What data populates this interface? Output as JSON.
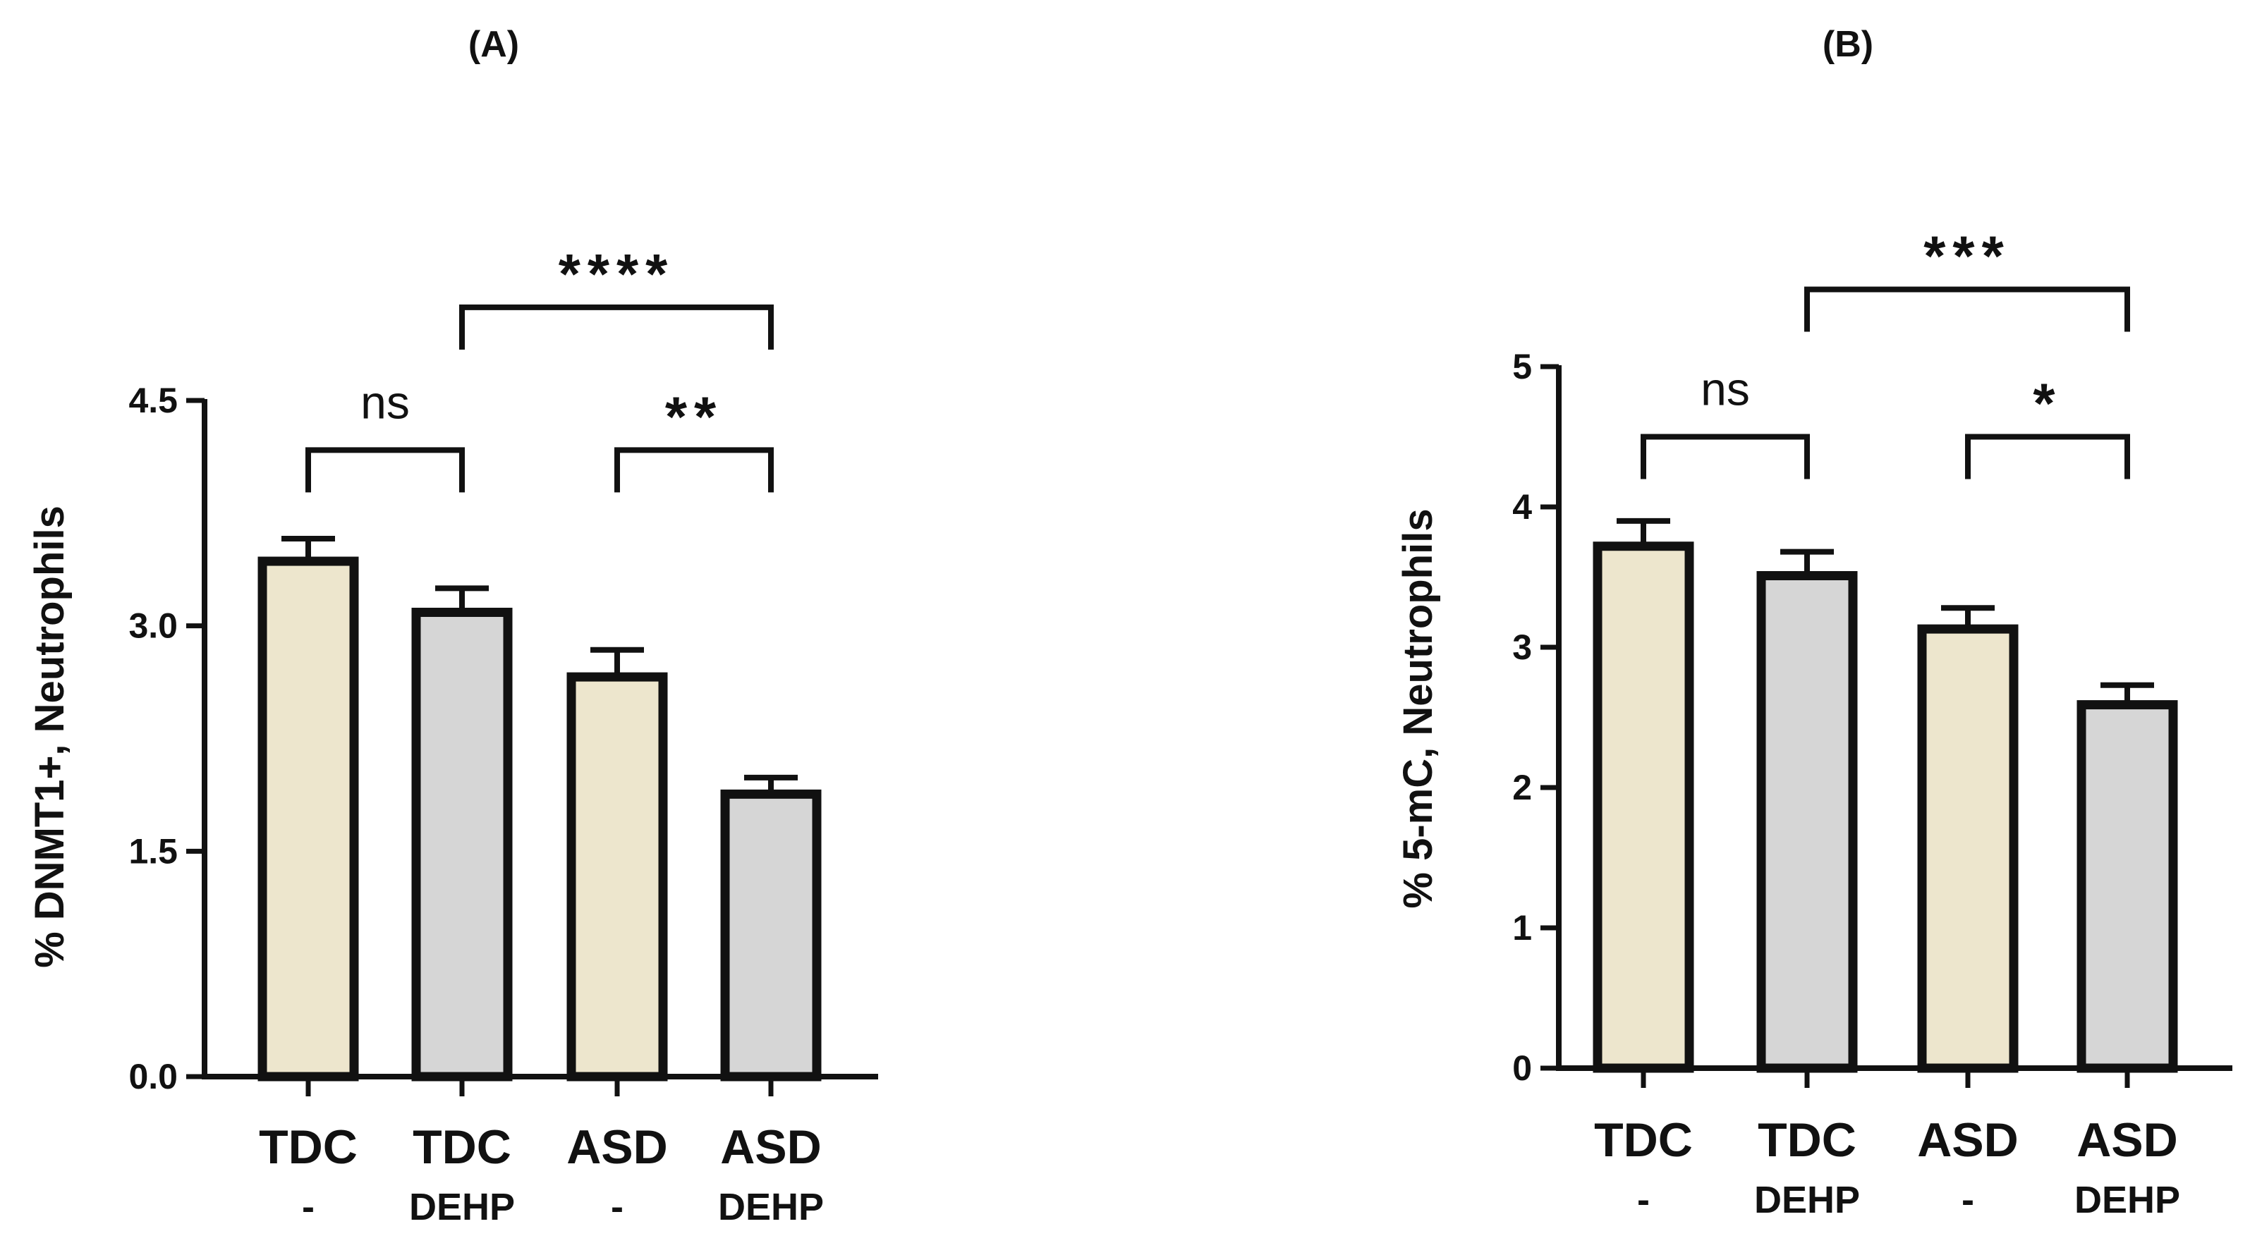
{
  "colors": {
    "tdc": "#ede6cd",
    "asd": "#ede6cd",
    "dehp": "#d6d6d6",
    "line": "#111111"
  },
  "chart_data": [
    {
      "panel": "(A)",
      "type": "bar",
      "categories": [
        {
          "line1": "TDC",
          "line2": "-"
        },
        {
          "line1": "TDC",
          "line2": "DEHP"
        },
        {
          "line1": "ASD",
          "line2": "-"
        },
        {
          "line1": "ASD",
          "line2": "DEHP"
        }
      ],
      "values": [
        3.43,
        3.09,
        2.66,
        1.88
      ],
      "errors": [
        0.15,
        0.16,
        0.18,
        0.11
      ],
      "fills": [
        "tdc",
        "dehp",
        "asd",
        "dehp"
      ],
      "ylabel": "% DNMT1+, Neutrophils",
      "ylim": [
        0,
        4.5
      ],
      "yticks": [
        {
          "value": 0,
          "label": "0.0"
        },
        {
          "value": 1.5,
          "label": "1.5"
        },
        {
          "value": 3.0,
          "label": "3.0"
        },
        {
          "value": 4.5,
          "label": "4.5"
        }
      ],
      "comparisons": [
        {
          "from": 0,
          "to": 1,
          "level": 4.17,
          "label": "ns"
        },
        {
          "from": 2,
          "to": 3,
          "level": 4.17,
          "label": "**"
        },
        {
          "from": 1,
          "to": 3,
          "level": 5.12,
          "label": "****"
        }
      ]
    },
    {
      "panel": "(B)",
      "type": "bar",
      "categories": [
        {
          "line1": "TDC",
          "line2": "-"
        },
        {
          "line1": "TDC",
          "line2": "DEHP"
        },
        {
          "line1": "ASD",
          "line2": "-"
        },
        {
          "line1": "ASD",
          "line2": "DEHP"
        }
      ],
      "values": [
        3.72,
        3.51,
        3.13,
        2.59
      ],
      "errors": [
        0.18,
        0.17,
        0.15,
        0.14
      ],
      "fills": [
        "tdc",
        "dehp",
        "asd",
        "dehp"
      ],
      "ylabel": "% 5-mC, Neutrophils",
      "ylim": [
        0,
        5
      ],
      "yticks": [
        {
          "value": 0,
          "label": "0"
        },
        {
          "value": 1,
          "label": "1"
        },
        {
          "value": 2,
          "label": "2"
        },
        {
          "value": 3,
          "label": "3"
        },
        {
          "value": 4,
          "label": "4"
        },
        {
          "value": 5,
          "label": "5"
        }
      ],
      "comparisons": [
        {
          "from": 0,
          "to": 1,
          "level": 4.5,
          "label": "ns"
        },
        {
          "from": 2,
          "to": 3,
          "level": 4.5,
          "label": "*"
        },
        {
          "from": 1,
          "to": 3,
          "level": 5.55,
          "label": "***"
        }
      ]
    }
  ]
}
